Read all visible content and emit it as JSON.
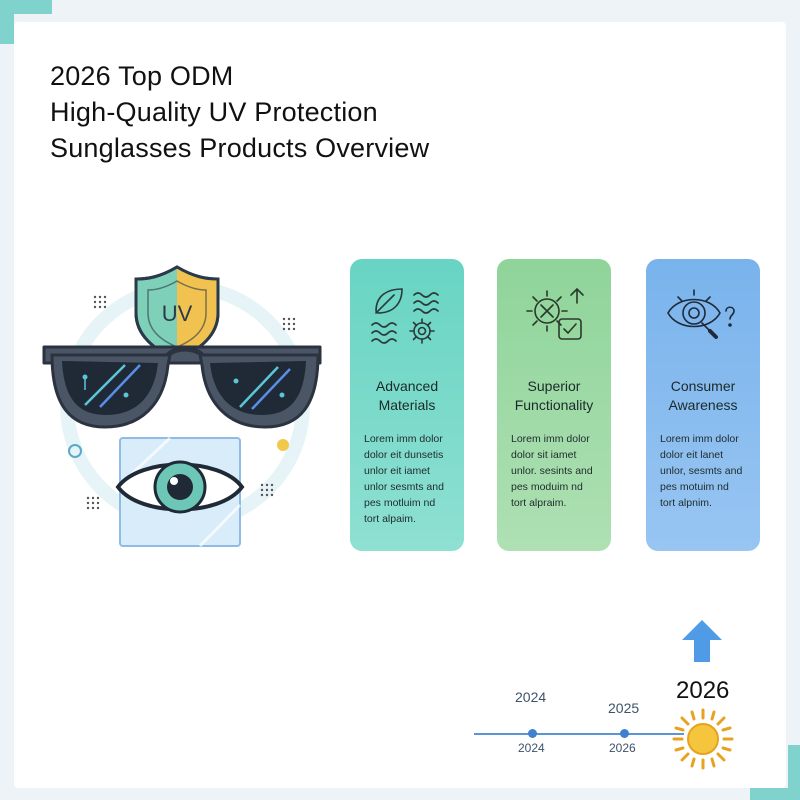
{
  "title": {
    "line1": "2026 Top ODM",
    "line2": "High-Quality UV Protection",
    "line3": "Sunglasses Products Overview"
  },
  "illustration": {
    "shield_text": "UV",
    "icons": [
      "shield-uv-icon",
      "sunglasses-icon",
      "eye-icon"
    ]
  },
  "cards": [
    {
      "title_l1": "Advanced",
      "title_l2": "Materials",
      "body": [
        "Lorem imm dolor",
        "dolor eit dunsetis",
        "unlor eit iamet",
        "unlor sesmts and",
        "pes motluim nd",
        "tort alpaim."
      ],
      "icon": "leaf-gear-icon",
      "color": "#68d4c3"
    },
    {
      "title_l1": "Superior",
      "title_l2": "Functionality",
      "body": [
        "Lorem imm dolor",
        "dolor sit iamet",
        "unlor. sesints and",
        "pes moduim nd",
        "tort alpraim."
      ],
      "icon": "sun-check-icon",
      "color": "#8fd49a"
    },
    {
      "title_l1": "Consumer",
      "title_l2": "Awareness",
      "body": [
        "Lorem imm dolor",
        "dolor eit lanet",
        "unlor, sesmts and",
        "pes motuim nd",
        "tort alpnim."
      ],
      "icon": "eye-magnifier-icon",
      "color": "#79b3ec"
    }
  ],
  "timeline": {
    "above": [
      "2024",
      "2025"
    ],
    "below": [
      "2024",
      "2026"
    ],
    "highlight": "2026"
  }
}
